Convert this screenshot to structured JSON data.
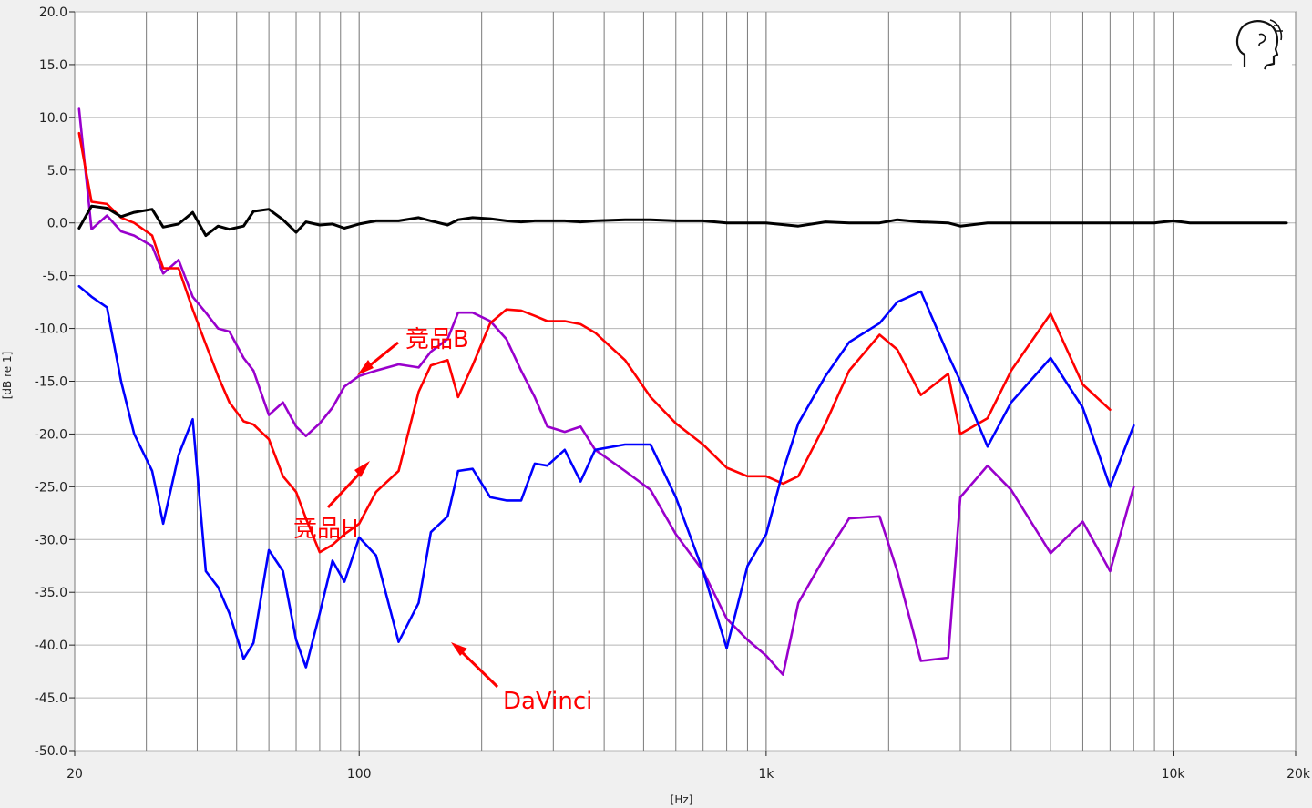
{
  "chart_data": {
    "type": "line",
    "xscale": "log",
    "xlim": [
      20,
      20000
    ],
    "ylim": [
      -50,
      20
    ],
    "ylabel": "[dB re 1]",
    "xlabel": "[Hz]",
    "xticks": [
      {
        "value": 20,
        "label": "20"
      },
      {
        "value": 100,
        "label": "100"
      },
      {
        "value": 1000,
        "label": "1k"
      },
      {
        "value": 10000,
        "label": "10k"
      },
      {
        "value": 20000,
        "label": "20k"
      }
    ],
    "yticks": [
      {
        "value": 20,
        "label": "20.0"
      },
      {
        "value": 15,
        "label": "15.0"
      },
      {
        "value": 10,
        "label": "10.0"
      },
      {
        "value": 5,
        "label": "5.0"
      },
      {
        "value": 0,
        "label": "0.0"
      },
      {
        "value": -5,
        "label": "-5.0"
      },
      {
        "value": -10,
        "label": "-10.0"
      },
      {
        "value": -15,
        "label": "-15.0"
      },
      {
        "value": -20,
        "label": "-20.0"
      },
      {
        "value": -25,
        "label": "-25.0"
      },
      {
        "value": -30,
        "label": "-30.0"
      },
      {
        "value": -35,
        "label": "-35.0"
      },
      {
        "value": -40,
        "label": "-40.0"
      },
      {
        "value": -45,
        "label": "-45.0"
      },
      {
        "value": -50,
        "label": "-50.0"
      }
    ],
    "grid": true,
    "series": [
      {
        "id": "reference",
        "color": "#000000",
        "points": [
          [
            20.5,
            -0.5
          ],
          [
            22,
            1.6
          ],
          [
            24,
            1.4
          ],
          [
            26,
            0.6
          ],
          [
            28,
            1.0
          ],
          [
            31,
            1.3
          ],
          [
            33,
            -0.4
          ],
          [
            36,
            -0.1
          ],
          [
            39,
            1.0
          ],
          [
            42,
            -1.2
          ],
          [
            45,
            -0.3
          ],
          [
            48,
            -0.6
          ],
          [
            52,
            -0.3
          ],
          [
            55,
            1.1
          ],
          [
            60,
            1.3
          ],
          [
            65,
            0.3
          ],
          [
            70,
            -0.9
          ],
          [
            74,
            0.1
          ],
          [
            80,
            -0.2
          ],
          [
            86,
            -0.1
          ],
          [
            92,
            -0.5
          ],
          [
            100,
            -0.1
          ],
          [
            110,
            0.2
          ],
          [
            125,
            0.2
          ],
          [
            140,
            0.5
          ],
          [
            150,
            0.2
          ],
          [
            165,
            -0.2
          ],
          [
            175,
            0.3
          ],
          [
            190,
            0.5
          ],
          [
            210,
            0.4
          ],
          [
            230,
            0.2
          ],
          [
            250,
            0.1
          ],
          [
            270,
            0.2
          ],
          [
            290,
            0.2
          ],
          [
            320,
            0.2
          ],
          [
            350,
            0.1
          ],
          [
            380,
            0.2
          ],
          [
            450,
            0.3
          ],
          [
            520,
            0.3
          ],
          [
            600,
            0.2
          ],
          [
            700,
            0.2
          ],
          [
            800,
            0.0
          ],
          [
            900,
            0.0
          ],
          [
            1000,
            0.0
          ],
          [
            1200,
            -0.3
          ],
          [
            1400,
            0.1
          ],
          [
            1600,
            0.0
          ],
          [
            1900,
            0.0
          ],
          [
            2100,
            0.3
          ],
          [
            2400,
            0.1
          ],
          [
            2800,
            0.0
          ],
          [
            3000,
            -0.3
          ],
          [
            3500,
            0.0
          ],
          [
            4000,
            0.0
          ],
          [
            5000,
            0.0
          ],
          [
            6000,
            0.0
          ],
          [
            7000,
            0.0
          ],
          [
            8000,
            0.0
          ],
          [
            9000,
            0.0
          ],
          [
            10000,
            0.2
          ],
          [
            11000,
            0.0
          ],
          [
            13000,
            0.0
          ],
          [
            16000,
            0.0
          ],
          [
            19000,
            0.0
          ]
        ]
      },
      {
        "id": "jingpin-h",
        "color": "#ff0000",
        "points": [
          [
            20.5,
            8.5
          ],
          [
            22,
            2.0
          ],
          [
            24,
            1.8
          ],
          [
            26,
            0.5
          ],
          [
            28,
            0.0
          ],
          [
            31,
            -1.2
          ],
          [
            33,
            -4.3
          ],
          [
            36,
            -4.3
          ],
          [
            39,
            -8.2
          ],
          [
            42,
            -11.5
          ],
          [
            45,
            -14.5
          ],
          [
            48,
            -17.0
          ],
          [
            52,
            -18.8
          ],
          [
            55,
            -19.1
          ],
          [
            60,
            -20.5
          ],
          [
            65,
            -24.0
          ],
          [
            70,
            -25.5
          ],
          [
            74,
            -28.0
          ],
          [
            80,
            -31.2
          ],
          [
            86,
            -30.5
          ],
          [
            92,
            -29.5
          ],
          [
            100,
            -28.5
          ],
          [
            110,
            -25.5
          ],
          [
            125,
            -23.5
          ],
          [
            140,
            -16.0
          ],
          [
            150,
            -13.5
          ],
          [
            165,
            -13.0
          ],
          [
            175,
            -16.5
          ],
          [
            190,
            -13.5
          ],
          [
            210,
            -9.5
          ],
          [
            230,
            -8.2
          ],
          [
            250,
            -8.3
          ],
          [
            270,
            -8.8
          ],
          [
            290,
            -9.3
          ],
          [
            320,
            -9.3
          ],
          [
            350,
            -9.6
          ],
          [
            380,
            -10.4
          ],
          [
            450,
            -13.0
          ],
          [
            520,
            -16.5
          ],
          [
            600,
            -19.0
          ],
          [
            700,
            -21.0
          ],
          [
            800,
            -23.2
          ],
          [
            900,
            -24.0
          ],
          [
            1000,
            -24.0
          ],
          [
            1100,
            -24.7
          ],
          [
            1200,
            -24.0
          ],
          [
            1400,
            -19.0
          ],
          [
            1600,
            -14.0
          ],
          [
            1900,
            -10.6
          ],
          [
            2100,
            -12.0
          ],
          [
            2400,
            -16.3
          ],
          [
            2800,
            -14.3
          ],
          [
            3000,
            -20.0
          ],
          [
            3500,
            -18.5
          ],
          [
            4000,
            -14.0
          ],
          [
            5000,
            -8.6
          ],
          [
            6000,
            -15.3
          ],
          [
            7000,
            -17.7
          ]
        ]
      },
      {
        "id": "jingpin-b",
        "color": "#9900cc",
        "points": [
          [
            20.5,
            10.8
          ],
          [
            22,
            -0.6
          ],
          [
            24,
            0.7
          ],
          [
            26,
            -0.8
          ],
          [
            28,
            -1.2
          ],
          [
            31,
            -2.2
          ],
          [
            33,
            -4.8
          ],
          [
            36,
            -3.5
          ],
          [
            39,
            -7.0
          ],
          [
            42,
            -8.5
          ],
          [
            45,
            -10.0
          ],
          [
            48,
            -10.3
          ],
          [
            52,
            -12.8
          ],
          [
            55,
            -14.0
          ],
          [
            60,
            -18.2
          ],
          [
            65,
            -17.0
          ],
          [
            70,
            -19.3
          ],
          [
            74,
            -20.2
          ],
          [
            80,
            -19.0
          ],
          [
            86,
            -17.5
          ],
          [
            92,
            -15.5
          ],
          [
            100,
            -14.5
          ],
          [
            110,
            -14.0
          ],
          [
            125,
            -13.4
          ],
          [
            140,
            -13.7
          ],
          [
            150,
            -12.2
          ],
          [
            165,
            -11.0
          ],
          [
            175,
            -8.5
          ],
          [
            190,
            -8.5
          ],
          [
            210,
            -9.3
          ],
          [
            230,
            -11.0
          ],
          [
            250,
            -14.0
          ],
          [
            270,
            -16.5
          ],
          [
            290,
            -19.3
          ],
          [
            320,
            -19.8
          ],
          [
            350,
            -19.3
          ],
          [
            380,
            -21.5
          ],
          [
            450,
            -23.5
          ],
          [
            520,
            -25.3
          ],
          [
            600,
            -29.5
          ],
          [
            700,
            -33.0
          ],
          [
            800,
            -37.5
          ],
          [
            900,
            -39.5
          ],
          [
            1000,
            -41.0
          ],
          [
            1100,
            -42.8
          ],
          [
            1200,
            -36.0
          ],
          [
            1400,
            -31.5
          ],
          [
            1600,
            -28.0
          ],
          [
            1900,
            -27.8
          ],
          [
            2100,
            -33.0
          ],
          [
            2400,
            -41.5
          ],
          [
            2800,
            -41.2
          ],
          [
            3000,
            -26.0
          ],
          [
            3500,
            -23.0
          ],
          [
            4000,
            -25.3
          ],
          [
            5000,
            -31.3
          ],
          [
            6000,
            -28.3
          ],
          [
            7000,
            -33.0
          ],
          [
            8000,
            -25.0
          ]
        ]
      },
      {
        "id": "davinci",
        "color": "#0000ff",
        "points": [
          [
            20.5,
            -6.0
          ],
          [
            22,
            -7.0
          ],
          [
            24,
            -8.0
          ],
          [
            26,
            -15.0
          ],
          [
            28,
            -20.0
          ],
          [
            31,
            -23.5
          ],
          [
            33,
            -28.5
          ],
          [
            36,
            -22.0
          ],
          [
            39,
            -18.6
          ],
          [
            42,
            -33.0
          ],
          [
            45,
            -34.5
          ],
          [
            48,
            -37.0
          ],
          [
            52,
            -41.3
          ],
          [
            55,
            -39.8
          ],
          [
            60,
            -31.0
          ],
          [
            65,
            -33.0
          ],
          [
            70,
            -39.5
          ],
          [
            74,
            -42.1
          ],
          [
            80,
            -37.0
          ],
          [
            86,
            -32.0
          ],
          [
            92,
            -34.0
          ],
          [
            100,
            -29.8
          ],
          [
            110,
            -31.5
          ],
          [
            125,
            -39.7
          ],
          [
            140,
            -36.0
          ],
          [
            150,
            -29.3
          ],
          [
            165,
            -27.8
          ],
          [
            175,
            -23.5
          ],
          [
            190,
            -23.3
          ],
          [
            210,
            -26.0
          ],
          [
            230,
            -26.3
          ],
          [
            250,
            -26.3
          ],
          [
            270,
            -22.8
          ],
          [
            290,
            -23.0
          ],
          [
            320,
            -21.5
          ],
          [
            350,
            -24.5
          ],
          [
            380,
            -21.5
          ],
          [
            450,
            -21.0
          ],
          [
            520,
            -21.0
          ],
          [
            600,
            -26.0
          ],
          [
            700,
            -33.0
          ],
          [
            800,
            -40.3
          ],
          [
            900,
            -32.5
          ],
          [
            1000,
            -29.5
          ],
          [
            1100,
            -23.5
          ],
          [
            1200,
            -19.0
          ],
          [
            1400,
            -14.5
          ],
          [
            1600,
            -11.3
          ],
          [
            1900,
            -9.5
          ],
          [
            2100,
            -7.5
          ],
          [
            2400,
            -6.5
          ],
          [
            2800,
            -12.5
          ],
          [
            3000,
            -15.0
          ],
          [
            3500,
            -21.2
          ],
          [
            4000,
            -17.0
          ],
          [
            5000,
            -12.8
          ],
          [
            6000,
            -17.5
          ],
          [
            7000,
            -25.0
          ],
          [
            8000,
            -19.2
          ]
        ]
      }
    ],
    "annotations": [
      {
        "text": "竞品B",
        "color": "#ff0000"
      },
      {
        "text": "竞品H",
        "color": "#ff0000"
      },
      {
        "text": "DaVinci",
        "color": "#ff0000"
      }
    ]
  }
}
